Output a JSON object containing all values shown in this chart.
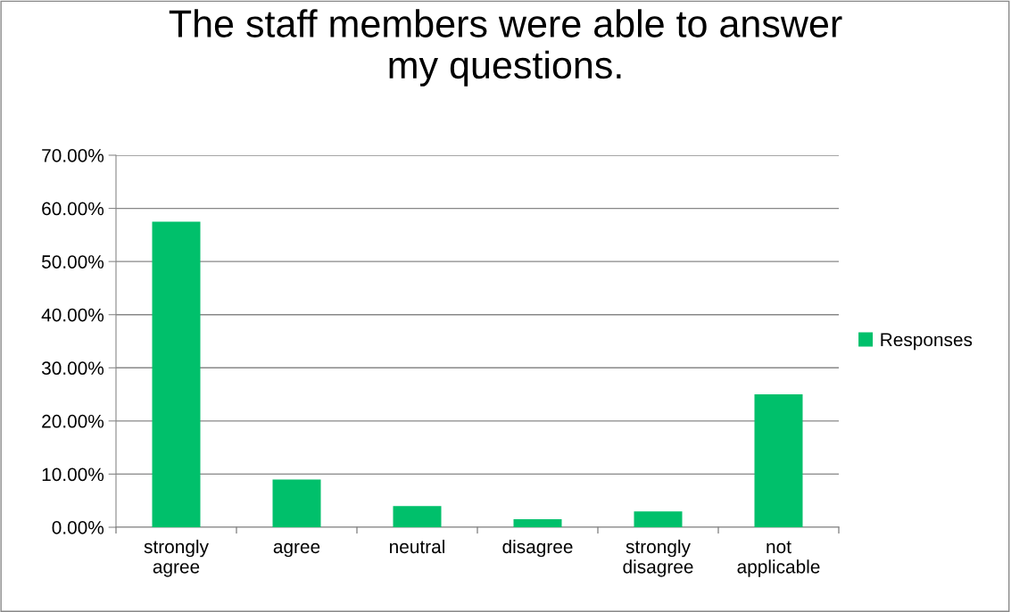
{
  "chart_data": {
    "type": "bar",
    "title": "The staff members were able to answer\nmy questions.",
    "categories": [
      "strongly\nagree",
      "agree",
      "neutral",
      "disagree",
      "strongly\ndisagree",
      "not\napplicable"
    ],
    "series": [
      {
        "name": "Responses",
        "color": "#00c06b",
        "values": [
          57.5,
          9.0,
          4.0,
          1.5,
          3.0,
          25.0
        ]
      }
    ],
    "ylim": [
      0,
      70
    ],
    "yticks": [
      {
        "value": 0,
        "label": "0.00%"
      },
      {
        "value": 10,
        "label": "10.00%"
      },
      {
        "value": 20,
        "label": "20.00%"
      },
      {
        "value": 30,
        "label": "30.00%"
      },
      {
        "value": 40,
        "label": "40.00%"
      },
      {
        "value": 50,
        "label": "50.00%"
      },
      {
        "value": 60,
        "label": "60.00%"
      },
      {
        "value": 70,
        "label": "70.00%"
      }
    ],
    "grid": "y",
    "legend": "right"
  }
}
